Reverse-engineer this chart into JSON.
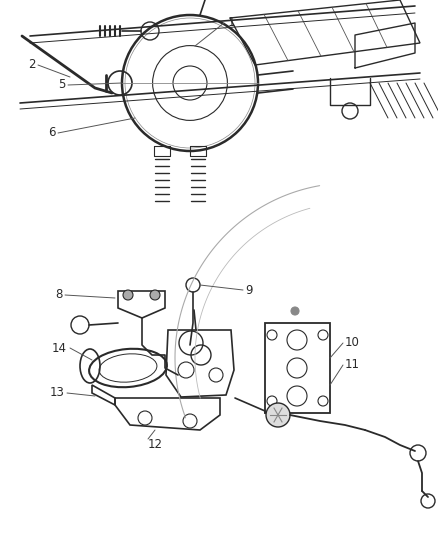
{
  "bg_color": "#f0f0f0",
  "line_color": "#2a2a2a",
  "label_color": "#2a2a2a",
  "leader_color": "#555555",
  "label_fontsize": 8.5,
  "fig_width": 4.38,
  "fig_height": 5.33,
  "dpi": 100
}
